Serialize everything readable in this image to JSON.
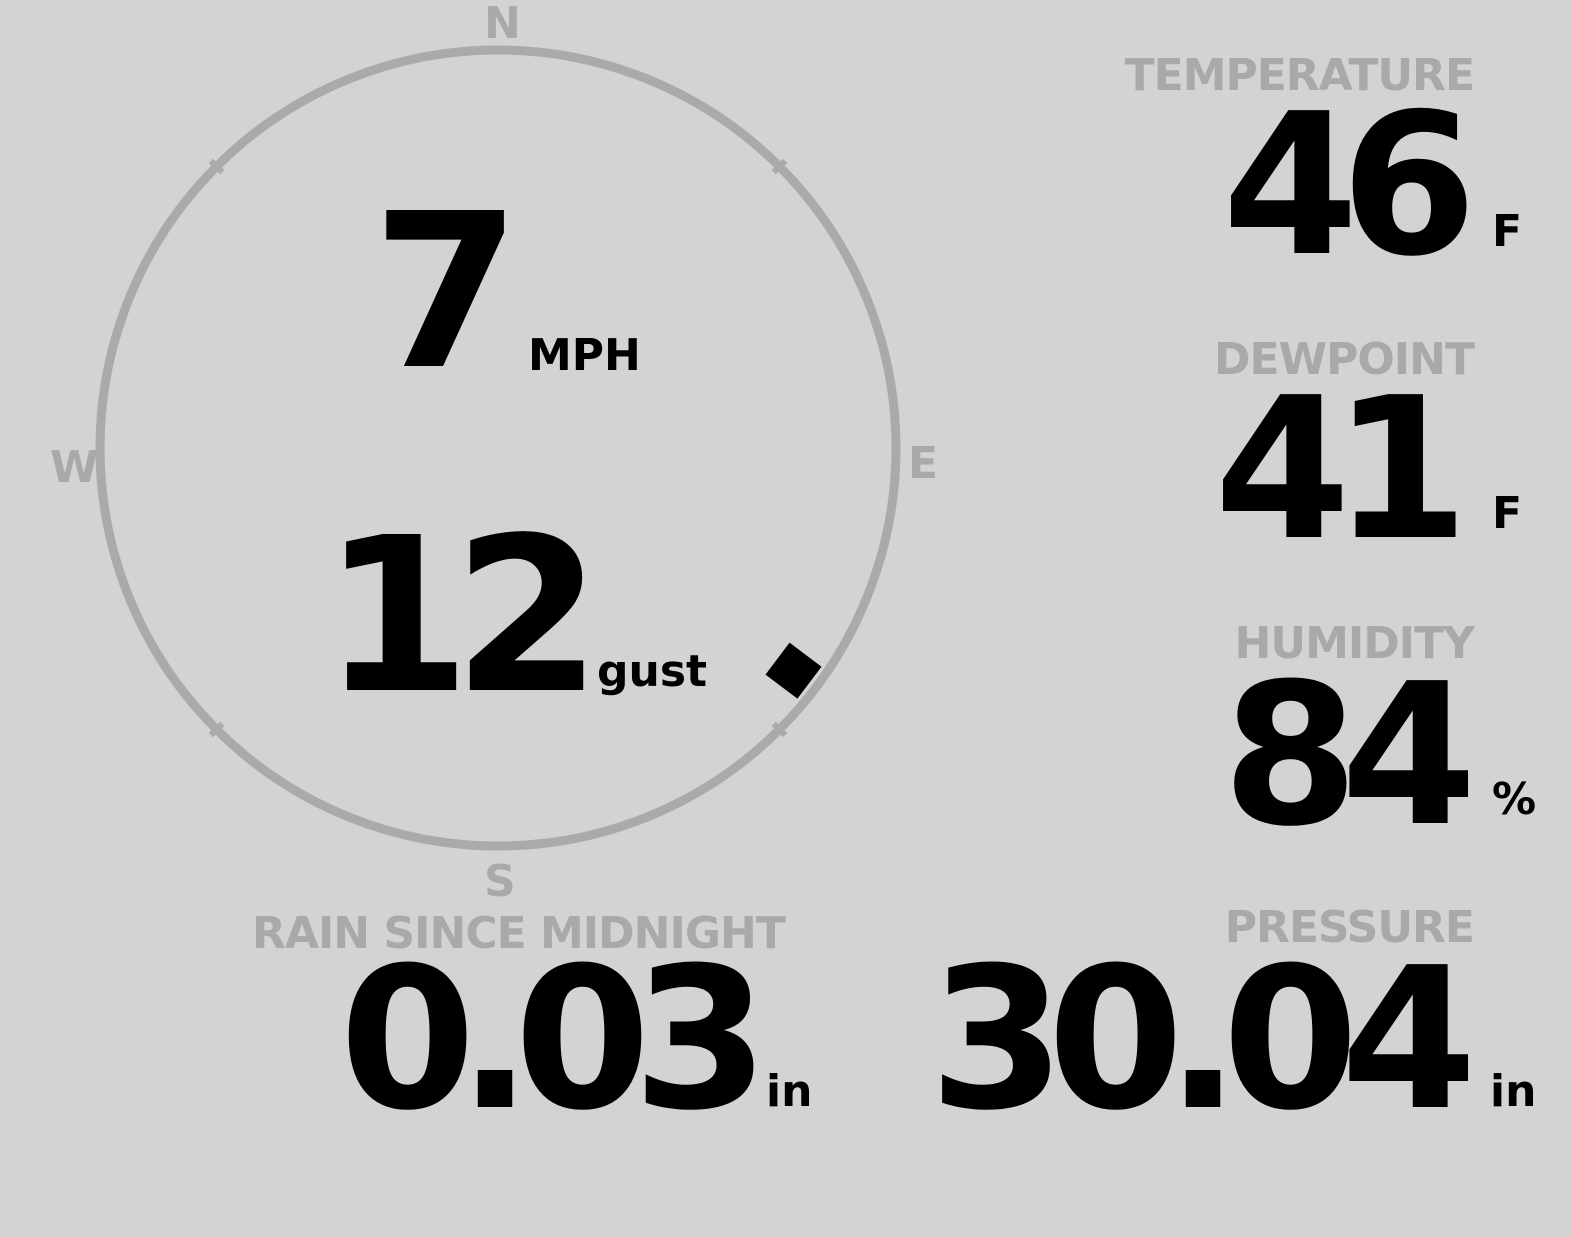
{
  "wind": {
    "speed": "7",
    "speed_unit": "MPH",
    "gust": "12",
    "gust_unit": "gust",
    "direction_degrees": 127,
    "compass": {
      "n": "N",
      "e": "E",
      "s": "S",
      "w": "W"
    }
  },
  "temperature": {
    "label": "TEMPERATURE",
    "value": "46",
    "unit": "F"
  },
  "dewpoint": {
    "label": "DEWPOINT",
    "value": "41",
    "unit": "F"
  },
  "humidity": {
    "label": "HUMIDITY",
    "value": "84",
    "unit": "%"
  },
  "rain": {
    "label": "RAIN SINCE MIDNIGHT",
    "value": "0.03",
    "unit": "in"
  },
  "pressure": {
    "label": "PRESSURE",
    "value": "30.04",
    "unit": "in"
  },
  "colors": {
    "background": "#d3d3d3",
    "label": "#a9a9a9",
    "ring": "#aaaaaa",
    "value": "#000000"
  }
}
